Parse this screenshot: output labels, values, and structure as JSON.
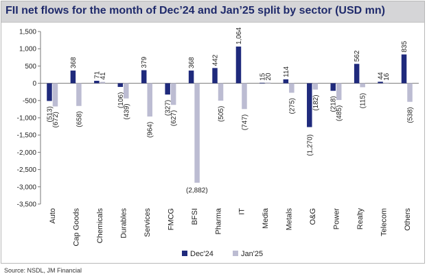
{
  "title": "FII net flows for the month of Dec’24 and Jan’25 split by sector (USD mn)",
  "source": "Source: NSDL, JM Financial",
  "colors": {
    "dec24": "#1f2a7c",
    "jan25": "#bcbcd2"
  },
  "chart_data": {
    "type": "bar",
    "categories": [
      "Auto",
      "Cap Goods",
      "Chemicals",
      "Durables",
      "Services",
      "FMCG",
      "BFSI",
      "Pharma",
      "IT",
      "Media",
      "Metals",
      "O&G",
      "Power",
      "Realty",
      "Telecom",
      "Others"
    ],
    "series": [
      {
        "name": "Dec'24",
        "values": [
          -513,
          368,
          71,
          -106,
          379,
          -327,
          368,
          442,
          1064,
          15,
          114,
          -1270,
          -218,
          562,
          44,
          835
        ],
        "labels": [
          "(513)",
          "368",
          "71",
          "(106)",
          "379",
          "(327)",
          "368",
          "442",
          "1,064",
          "15",
          "114",
          "(1,270)",
          "(218)",
          "562",
          "44",
          "835"
        ]
      },
      {
        "name": "Jan'25",
        "values": [
          -672,
          -658,
          41,
          -439,
          -964,
          -627,
          -2882,
          -505,
          -747,
          20,
          -275,
          -182,
          -485,
          -115,
          16,
          -538
        ],
        "labels": [
          "(672)",
          "(658)",
          "41",
          "(439)",
          "(964)",
          "(627)",
          "(2,882)",
          "(505)",
          "(747)",
          "20",
          "(275)",
          "(182)",
          "(485)",
          "(115)",
          "16",
          "(538)"
        ]
      }
    ],
    "ylim": [
      -3500,
      1500
    ],
    "yticks": [
      1500,
      1000,
      500,
      0,
      -500,
      -1000,
      -1500,
      -2000,
      -2500,
      -3000,
      -3500
    ],
    "ytick_labels": [
      "1,500",
      "1,000",
      "500",
      "0",
      "-500",
      "-1,000",
      "-1,500",
      "-2,000",
      "-2,500",
      "-3,000",
      "-3,500"
    ],
    "grid": false,
    "legend": "bottom"
  }
}
